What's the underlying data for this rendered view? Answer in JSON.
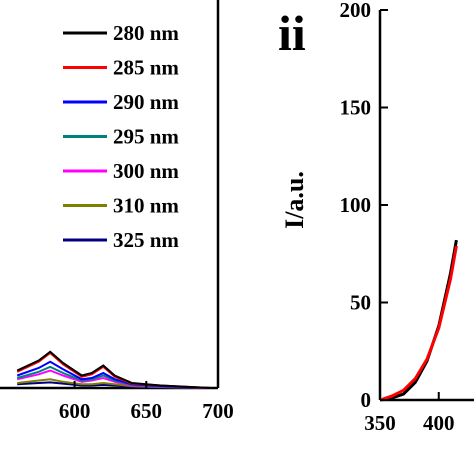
{
  "chart_data": [
    {
      "type": "line",
      "title": "",
      "xlabel": "",
      "ylabel": "",
      "xlim": [
        548,
        700
      ],
      "x_ticks": [
        "600",
        "650",
        "700"
      ],
      "legend_position": "top-right",
      "series": [
        {
          "name": "280 nm",
          "color": "#000000",
          "points": [
            [
              560,
              0.14
            ],
            [
              575,
              0.22
            ],
            [
              583,
              0.29
            ],
            [
              592,
              0.2
            ],
            [
              605,
              0.1
            ],
            [
              612,
              0.12
            ],
            [
              620,
              0.18
            ],
            [
              628,
              0.1
            ],
            [
              640,
              0.04
            ],
            [
              660,
              0.02
            ],
            [
              695,
              0.0
            ]
          ]
        },
        {
          "name": "285 nm",
          "color": "#ff0000",
          "points": [
            [
              560,
              0.13
            ],
            [
              575,
              0.21
            ],
            [
              583,
              0.28
            ],
            [
              592,
              0.19
            ],
            [
              605,
              0.09
            ],
            [
              612,
              0.11
            ],
            [
              620,
              0.17
            ],
            [
              628,
              0.09
            ],
            [
              640,
              0.035
            ],
            [
              660,
              0.02
            ],
            [
              695,
              0.0
            ]
          ]
        },
        {
          "name": "290 nm",
          "color": "#0000ff",
          "points": [
            [
              560,
              0.1
            ],
            [
              575,
              0.16
            ],
            [
              583,
              0.21
            ],
            [
              592,
              0.15
            ],
            [
              605,
              0.07
            ],
            [
              612,
              0.08
            ],
            [
              620,
              0.12
            ],
            [
              628,
              0.07
            ],
            [
              640,
              0.03
            ],
            [
              660,
              0.015
            ],
            [
              695,
              0.0
            ]
          ]
        },
        {
          "name": "295 nm",
          "color": "#008080",
          "points": [
            [
              560,
              0.08
            ],
            [
              575,
              0.13
            ],
            [
              583,
              0.17
            ],
            [
              592,
              0.12
            ],
            [
              605,
              0.06
            ],
            [
              612,
              0.07
            ],
            [
              620,
              0.1
            ],
            [
              628,
              0.06
            ],
            [
              640,
              0.025
            ],
            [
              660,
              0.012
            ],
            [
              695,
              0.0
            ]
          ]
        },
        {
          "name": "300 nm",
          "color": "#ff00ff",
          "points": [
            [
              560,
              0.07
            ],
            [
              575,
              0.11
            ],
            [
              583,
              0.14
            ],
            [
              592,
              0.1
            ],
            [
              605,
              0.05
            ],
            [
              612,
              0.06
            ],
            [
              620,
              0.08
            ],
            [
              628,
              0.05
            ],
            [
              640,
              0.02
            ],
            [
              660,
              0.01
            ],
            [
              695,
              0.0
            ]
          ]
        },
        {
          "name": "310 nm",
          "color": "#808000",
          "points": [
            [
              560,
              0.04
            ],
            [
              575,
              0.06
            ],
            [
              583,
              0.07
            ],
            [
              592,
              0.05
            ],
            [
              605,
              0.03
            ],
            [
              612,
              0.03
            ],
            [
              620,
              0.04
            ],
            [
              628,
              0.03
            ],
            [
              640,
              0.015
            ],
            [
              660,
              0.008
            ],
            [
              695,
              0.0
            ]
          ]
        },
        {
          "name": "325 nm",
          "color": "#000080",
          "points": [
            [
              560,
              0.03
            ],
            [
              575,
              0.04
            ],
            [
              583,
              0.045
            ],
            [
              592,
              0.035
            ],
            [
              605,
              0.02
            ],
            [
              612,
              0.02
            ],
            [
              620,
              0.025
            ],
            [
              628,
              0.02
            ],
            [
              640,
              0.01
            ],
            [
              660,
              0.005
            ],
            [
              695,
              0.0
            ]
          ]
        }
      ]
    },
    {
      "panel_label": "ii",
      "type": "line",
      "title": "",
      "xlabel": "",
      "ylabel": "I/a.u.",
      "ylim": [
        0,
        200
      ],
      "y_ticks": [
        "0",
        "50",
        "100",
        "150",
        "200"
      ],
      "x_ticks": [
        "350",
        "400"
      ],
      "xlim": [
        350,
        430
      ],
      "series": [
        {
          "name": "",
          "color": "#000000",
          "points": [
            [
              350,
              0
            ],
            [
              360,
              1
            ],
            [
              370,
              3
            ],
            [
              380,
              9
            ],
            [
              390,
              20
            ],
            [
              400,
              38
            ],
            [
              410,
              65
            ],
            [
              415,
              82
            ]
          ]
        },
        {
          "name": "",
          "color": "#ff0000",
          "points": [
            [
              350,
              0
            ],
            [
              360,
              2
            ],
            [
              370,
              5
            ],
            [
              380,
              11
            ],
            [
              390,
              21
            ],
            [
              400,
              37
            ],
            [
              410,
              62
            ],
            [
              415,
              79
            ]
          ]
        }
      ]
    }
  ]
}
